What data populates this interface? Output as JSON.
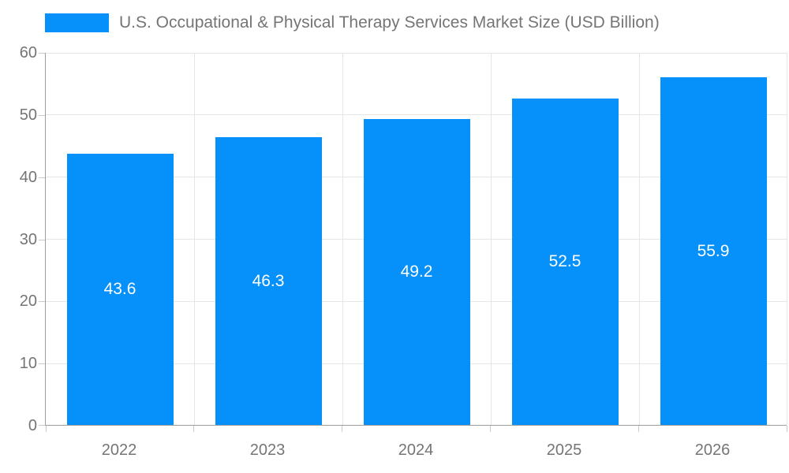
{
  "chart_data": {
    "type": "bar",
    "title": "U.S. Occupational & Physical Therapy Services Market Size (USD Billion)",
    "categories": [
      "2022",
      "2023",
      "2024",
      "2025",
      "2026"
    ],
    "values": [
      43.6,
      46.3,
      49.2,
      52.5,
      55.9
    ],
    "xlabel": "",
    "ylabel": "",
    "ylim": [
      0,
      60
    ],
    "yticks": [
      0,
      10,
      20,
      30,
      40,
      50,
      60
    ],
    "grid": true,
    "legend_position": "top-left",
    "bar_color": "#0590FA",
    "bar_label_color": "#ffffff",
    "axis_text_color": "#757575",
    "gridline_color": "#e6e6e6",
    "axis_line_color": "#9e9e9e",
    "background_color": "#ffffff"
  }
}
